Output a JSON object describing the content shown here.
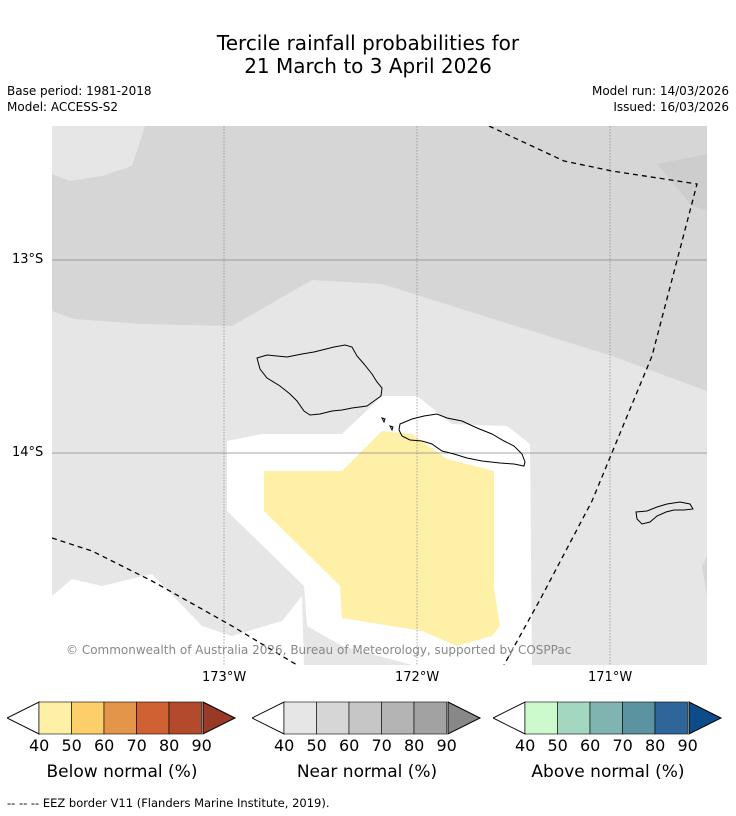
{
  "title_line1": "Tercile rainfall probabilities for",
  "title_line2": "21 March to 3 April 2026",
  "meta": {
    "base_period": "Base period: 1981-2018",
    "model": "Model: ACCESS-S2",
    "model_run": "Model run: 14/03/2026",
    "issued": "Issued: 16/03/2026"
  },
  "axes": {
    "lat_labels": [
      "13°S",
      "14°S"
    ],
    "lon_labels": [
      "173°W",
      "172°W",
      "171°W"
    ]
  },
  "copyright": "© Commonwealth of Australia 2026, Bureau of Meteorology, supported by COSPPac",
  "colorbars": {
    "ticks": [
      "40",
      "50",
      "60",
      "70",
      "80",
      "90"
    ],
    "below": {
      "label": "Below normal (%)",
      "colors": [
        "#fff0a8",
        "#fdcf6a",
        "#e3954a",
        "#cf6132",
        "#b24a2b",
        "#983a25"
      ]
    },
    "near": {
      "label": "Near normal (%)",
      "colors": [
        "#e6e6e6",
        "#d6d6d6",
        "#c6c6c6",
        "#b4b4b4",
        "#a2a2a2",
        "#888888"
      ]
    },
    "above": {
      "label": "Above normal (%)",
      "colors": [
        "#ccfacc",
        "#a3d7bf",
        "#80b4b1",
        "#5b93a0",
        "#2f6699",
        "#0d4c8a"
      ]
    }
  },
  "footer": "--  --  -- EEZ border V11 (Flanders Marine Institute, 2019)."
}
